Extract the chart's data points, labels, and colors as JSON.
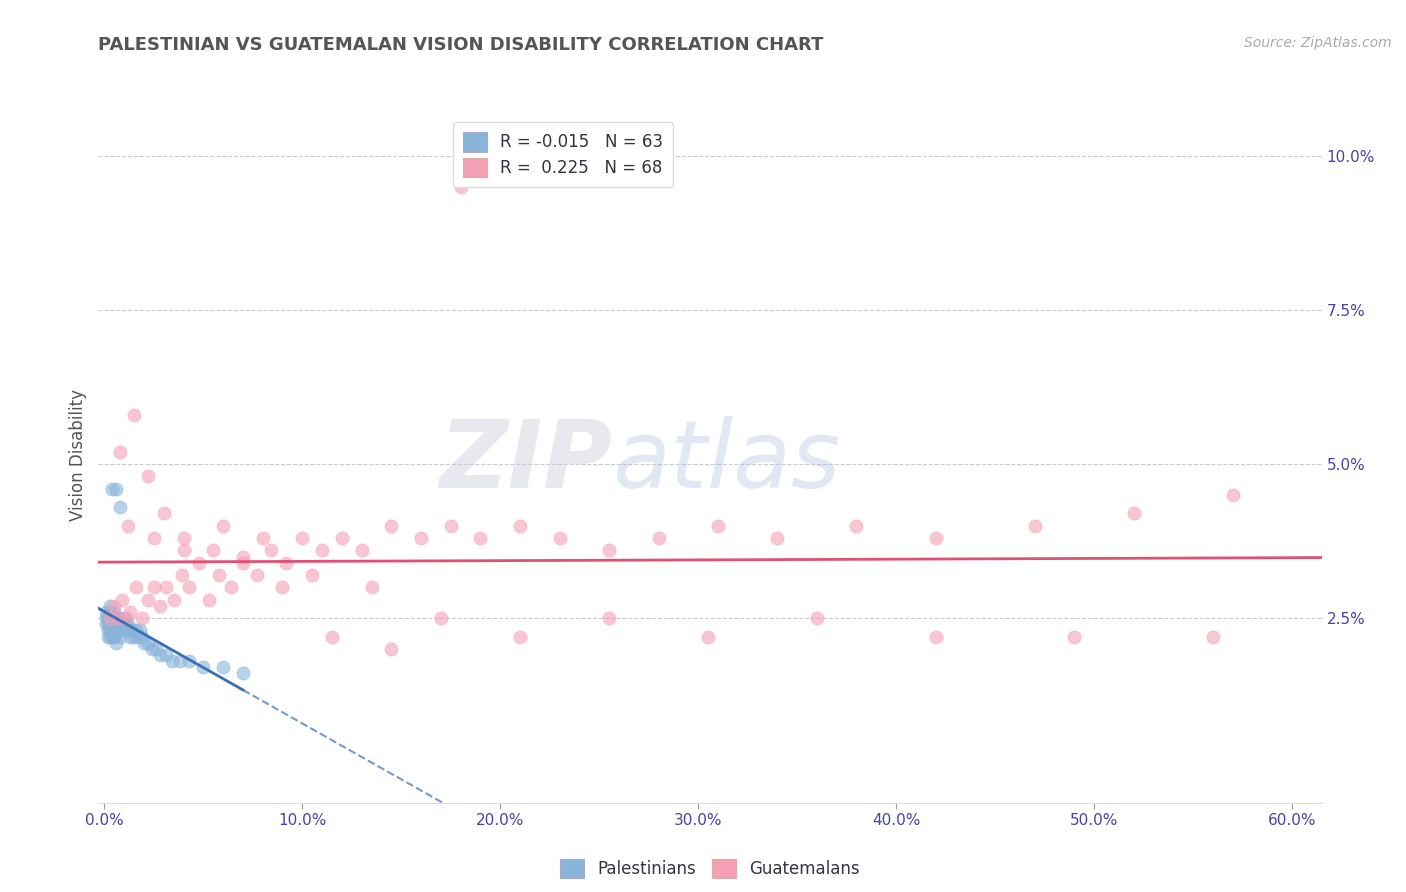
{
  "title": "PALESTINIAN VS GUATEMALAN VISION DISABILITY CORRELATION CHART",
  "source": "Source: ZipAtlas.com",
  "xlabel_ticks": [
    "0.0%",
    "10.0%",
    "20.0%",
    "30.0%",
    "40.0%",
    "50.0%",
    "60.0%"
  ],
  "xlabel_vals": [
    0.0,
    0.1,
    0.2,
    0.3,
    0.4,
    0.5,
    0.6
  ],
  "ylabel": "Vision Disability",
  "ylabel_ticks": [
    "2.5%",
    "5.0%",
    "7.5%",
    "10.0%"
  ],
  "ylabel_vals": [
    0.025,
    0.05,
    0.075,
    0.1
  ],
  "xlim": [
    -0.003,
    0.615
  ],
  "ylim": [
    -0.005,
    0.108
  ],
  "watermark_zip": "ZIP",
  "watermark_atlas": "atlas",
  "legend_blue_label": "R = -0.015   N = 63",
  "legend_pink_label": "R =  0.225   N = 68",
  "blue_scatter_color": "#89B4D9",
  "pink_scatter_color": "#F4A0B5",
  "blue_line_color": "#3B6FB5",
  "pink_line_color": "#E05070",
  "palestinians_x": [
    0.001,
    0.001,
    0.001,
    0.002,
    0.002,
    0.002,
    0.002,
    0.003,
    0.003,
    0.003,
    0.003,
    0.003,
    0.004,
    0.004,
    0.004,
    0.004,
    0.005,
    0.005,
    0.005,
    0.005,
    0.005,
    0.006,
    0.006,
    0.006,
    0.006,
    0.007,
    0.007,
    0.007,
    0.008,
    0.008,
    0.008,
    0.009,
    0.009,
    0.01,
    0.01,
    0.01,
    0.011,
    0.011,
    0.012,
    0.012,
    0.013,
    0.013,
    0.014,
    0.015,
    0.016,
    0.017,
    0.018,
    0.019,
    0.02,
    0.022,
    0.024,
    0.026,
    0.028,
    0.031,
    0.034,
    0.038,
    0.043,
    0.05,
    0.06,
    0.07,
    0.004,
    0.006,
    0.008
  ],
  "palestinians_y": [
    0.025,
    0.024,
    0.026,
    0.023,
    0.025,
    0.022,
    0.024,
    0.026,
    0.023,
    0.025,
    0.027,
    0.022,
    0.025,
    0.024,
    0.023,
    0.022,
    0.026,
    0.025,
    0.024,
    0.023,
    0.022,
    0.025,
    0.024,
    0.023,
    0.021,
    0.025,
    0.024,
    0.023,
    0.024,
    0.023,
    0.022,
    0.024,
    0.023,
    0.025,
    0.024,
    0.023,
    0.024,
    0.023,
    0.024,
    0.023,
    0.023,
    0.022,
    0.023,
    0.022,
    0.023,
    0.022,
    0.023,
    0.022,
    0.021,
    0.021,
    0.02,
    0.02,
    0.019,
    0.019,
    0.018,
    0.018,
    0.018,
    0.017,
    0.017,
    0.016,
    0.046,
    0.046,
    0.043
  ],
  "guatemalans_x": [
    0.003,
    0.005,
    0.007,
    0.009,
    0.011,
    0.013,
    0.016,
    0.019,
    0.022,
    0.025,
    0.028,
    0.031,
    0.035,
    0.039,
    0.043,
    0.048,
    0.053,
    0.058,
    0.064,
    0.07,
    0.077,
    0.084,
    0.092,
    0.1,
    0.11,
    0.12,
    0.13,
    0.145,
    0.16,
    0.175,
    0.19,
    0.21,
    0.23,
    0.255,
    0.28,
    0.31,
    0.34,
    0.38,
    0.42,
    0.47,
    0.52,
    0.57,
    0.012,
    0.025,
    0.04,
    0.06,
    0.08,
    0.105,
    0.135,
    0.17,
    0.21,
    0.255,
    0.305,
    0.36,
    0.42,
    0.49,
    0.56,
    0.008,
    0.015,
    0.022,
    0.03,
    0.04,
    0.055,
    0.07,
    0.09,
    0.115,
    0.145,
    0.18
  ],
  "guatemalans_y": [
    0.025,
    0.027,
    0.025,
    0.028,
    0.025,
    0.026,
    0.03,
    0.025,
    0.028,
    0.03,
    0.027,
    0.03,
    0.028,
    0.032,
    0.03,
    0.034,
    0.028,
    0.032,
    0.03,
    0.035,
    0.032,
    0.036,
    0.034,
    0.038,
    0.036,
    0.038,
    0.036,
    0.04,
    0.038,
    0.04,
    0.038,
    0.04,
    0.038,
    0.036,
    0.038,
    0.04,
    0.038,
    0.04,
    0.038,
    0.04,
    0.042,
    0.045,
    0.04,
    0.038,
    0.036,
    0.04,
    0.038,
    0.032,
    0.03,
    0.025,
    0.022,
    0.025,
    0.022,
    0.025,
    0.022,
    0.022,
    0.022,
    0.052,
    0.058,
    0.048,
    0.042,
    0.038,
    0.036,
    0.034,
    0.03,
    0.022,
    0.02,
    0.095
  ]
}
